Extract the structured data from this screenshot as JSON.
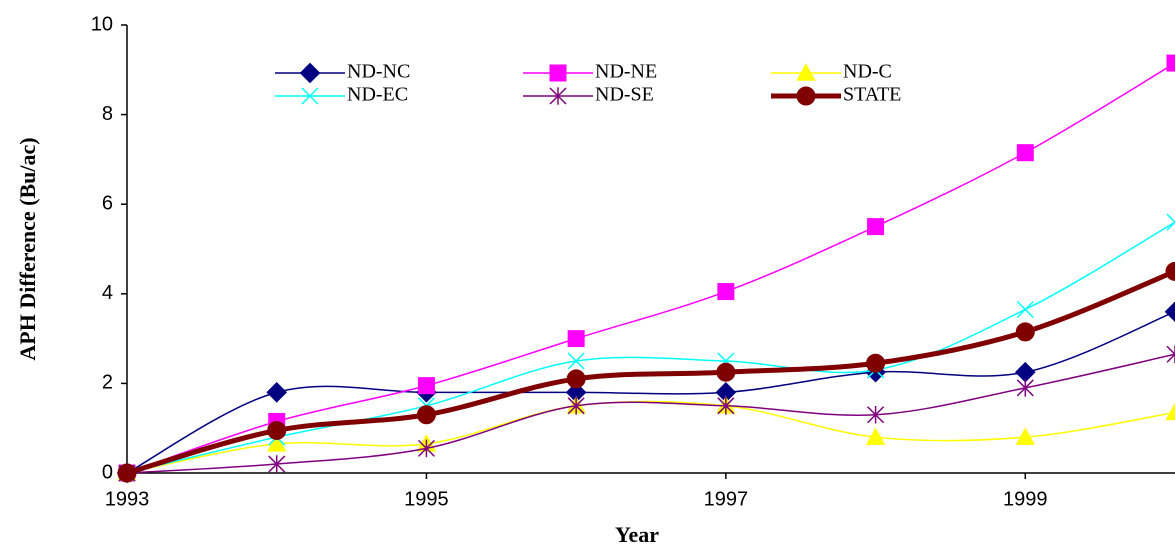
{
  "chart_data": {
    "type": "line",
    "x_label": "Year",
    "y_label": "APH Difference (Bu/ac)",
    "x": [
      1993,
      1994,
      1995,
      1996,
      1997,
      1998,
      1999,
      2000
    ],
    "xlim": [
      1993,
      2000
    ],
    "xticks": [
      1993,
      1995,
      1997,
      1999
    ],
    "ylim": [
      0,
      10
    ],
    "yticks": [
      0,
      2,
      4,
      6,
      8,
      10
    ],
    "smooth": true,
    "grid": false,
    "series": [
      {
        "name": "ND-NC",
        "color": "#000080",
        "marker": "diamond",
        "width": 1.5,
        "values": [
          0,
          1.8,
          1.8,
          1.8,
          1.8,
          2.25,
          2.25,
          3.6
        ]
      },
      {
        "name": "ND-NE",
        "color": "#ff00ff",
        "marker": "square",
        "width": 1.5,
        "values": [
          0,
          1.15,
          1.95,
          3.0,
          4.05,
          5.5,
          7.15,
          9.15
        ]
      },
      {
        "name": "ND-C",
        "color": "#ffff00",
        "marker": "triangle",
        "width": 1.5,
        "values": [
          0,
          0.65,
          0.65,
          1.5,
          1.5,
          0.8,
          0.8,
          1.35
        ]
      },
      {
        "name": "ND-EC",
        "color": "#00ffff",
        "marker": "x",
        "width": 1.5,
        "values": [
          0,
          0.8,
          1.5,
          2.5,
          2.5,
          2.3,
          3.65,
          5.6
        ]
      },
      {
        "name": "ND-SE",
        "color": "#800080",
        "marker": "asterisk",
        "width": 1.5,
        "values": [
          0,
          0.2,
          0.55,
          1.5,
          1.5,
          1.3,
          1.9,
          2.65
        ]
      },
      {
        "name": "STATE",
        "color": "#800000",
        "marker": "circle",
        "width": 5,
        "values": [
          0,
          0.95,
          1.3,
          2.1,
          2.25,
          2.45,
          3.15,
          4.5
        ]
      }
    ]
  }
}
